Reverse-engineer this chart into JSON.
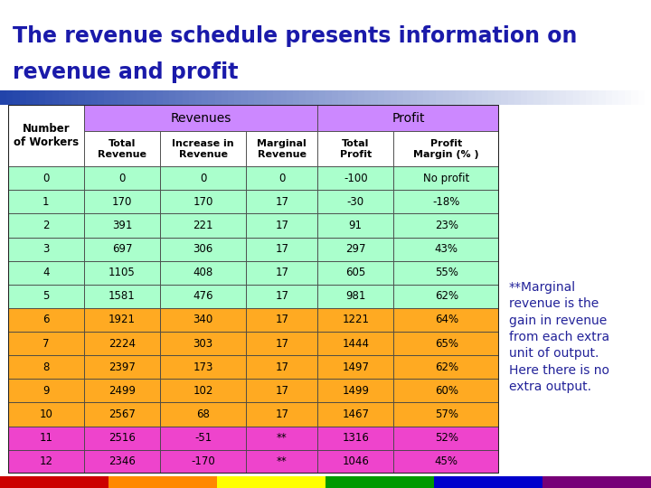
{
  "title_line1": "The revenue schedule presents information on",
  "title_line2": "revenue and profit",
  "title_color": "#1a1aaa",
  "title_fontsize": 17,
  "header1_label": "Revenues",
  "header2_label": "Profit",
  "header_bg": "#cc88ff",
  "col_headers": [
    "Number\nof Workers",
    "Total\nRevenue",
    "Increase in\nRevenue",
    "Marginal\nRevenue",
    "Total\nProfit",
    "Profit\nMargin (% )"
  ],
  "rows": [
    [
      "0",
      "0",
      "0",
      "0",
      "-100",
      "No profit"
    ],
    [
      "1",
      "170",
      "170",
      "17",
      "-30",
      "-18%"
    ],
    [
      "2",
      "391",
      "221",
      "17",
      "91",
      "23%"
    ],
    [
      "3",
      "697",
      "306",
      "17",
      "297",
      "43%"
    ],
    [
      "4",
      "1105",
      "408",
      "17",
      "605",
      "55%"
    ],
    [
      "5",
      "1581",
      "476",
      "17",
      "981",
      "62%"
    ],
    [
      "6",
      "1921",
      "340",
      "17",
      "1221",
      "64%"
    ],
    [
      "7",
      "2224",
      "303",
      "17",
      "1444",
      "65%"
    ],
    [
      "8",
      "2397",
      "173",
      "17",
      "1497",
      "62%"
    ],
    [
      "9",
      "2499",
      "102",
      "17",
      "1499",
      "60%"
    ],
    [
      "10",
      "2567",
      "68",
      "17",
      "1467",
      "57%"
    ],
    [
      "11",
      "2516",
      "-51",
      "**",
      "1316",
      "52%"
    ],
    [
      "12",
      "2346",
      "-170",
      "**",
      "1046",
      "45%"
    ]
  ],
  "row_colors_green": "#aaffcc",
  "row_colors_orange": "#ffaa22",
  "row_colors_pink": "#ee44cc",
  "note_text": "**Marginal\nrevenue is the\ngain in revenue\nfrom each extra\nunit of output.\nHere there is no\nextra output.",
  "note_color": "#222299",
  "note_fontsize": 10,
  "gradient_bar_colors": [
    "#3333aa",
    "#6699cc",
    "#aaccee",
    "#ffffff"
  ],
  "bottom_bar_colors": [
    "#cc0000",
    "#ff8800",
    "#ffff00",
    "#009900",
    "#0000cc",
    "#770077"
  ],
  "cell_border_color": "#444444",
  "outer_border_color": "#222222"
}
